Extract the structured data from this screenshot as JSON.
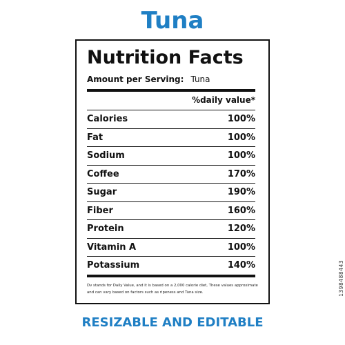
{
  "colors": {
    "accent": "#1f7fc4",
    "ink": "#111111"
  },
  "heading": "Tuna",
  "label": {
    "title": "Nutrition Facts",
    "serving_label": "Amount per Serving:",
    "serving_value": "Tuna",
    "dv_header": "%daily value*",
    "nutrients": [
      {
        "name": "Calories",
        "value": "100%"
      },
      {
        "name": "Fat",
        "value": "100%"
      },
      {
        "name": "Sodium",
        "value": "100%"
      },
      {
        "name": "Coffee",
        "value": "170%"
      },
      {
        "name": "Sugar",
        "value": "190%"
      },
      {
        "name": "Fiber",
        "value": "160%"
      },
      {
        "name": "Protein",
        "value": "120%"
      },
      {
        "name": "Vitamin A",
        "value": "100%"
      },
      {
        "name": "Potassium",
        "value": "140%"
      }
    ],
    "footnote": "Dv stands for Daily Value, and it is based on a 2,000 calorie diet, These values approximate and can vary based on factors such as ripeness and Tuna size."
  },
  "footer": "RESIZABLE AND EDITABLE",
  "watermark_id": "1398488443"
}
